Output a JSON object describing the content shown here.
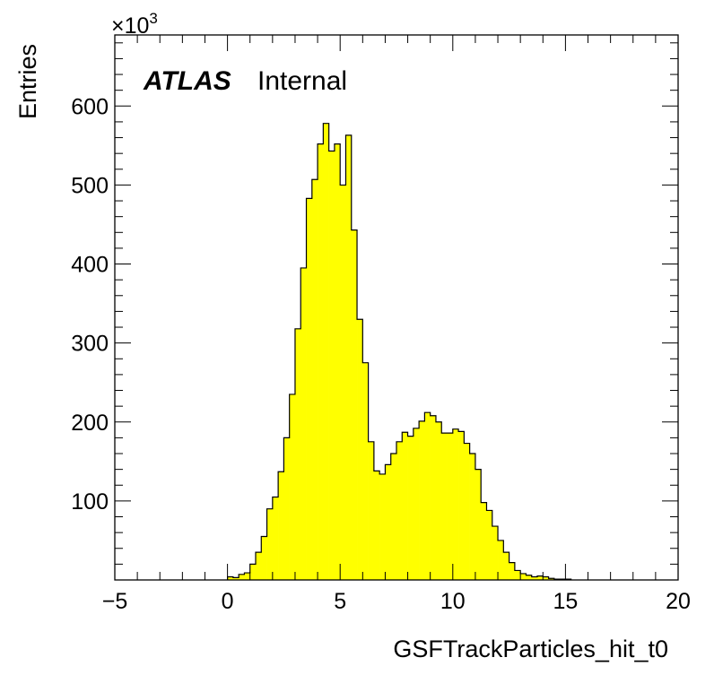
{
  "chart_data": {
    "type": "histogram",
    "xlabel": "GSFTrackParticles_hit_t0",
    "ylabel": "Entries",
    "y_multiplier": "×10",
    "y_multiplier_exp": "3",
    "atlas_label": "ATLAS",
    "atlas_status": "Internal",
    "xlim": [
      -5,
      20
    ],
    "ylim": [
      0,
      690
    ],
    "x_ticks": [
      -5,
      0,
      5,
      10,
      15,
      20
    ],
    "x_tick_labels": [
      "−5",
      "0",
      "5",
      "10",
      "15",
      "20"
    ],
    "y_ticks": [
      100,
      200,
      300,
      400,
      500,
      600
    ],
    "y_tick_labels": [
      "100",
      "200",
      "300",
      "400",
      "500",
      "600"
    ],
    "bin_width": 0.25,
    "bin_start": 0,
    "values": [
      4,
      3,
      7,
      9,
      20,
      35,
      55,
      90,
      105,
      137,
      180,
      235,
      318,
      395,
      483,
      507,
      552,
      578,
      543,
      552,
      500,
      563,
      443,
      330,
      275,
      175,
      138,
      134,
      146,
      160,
      175,
      187,
      182,
      192,
      201,
      212,
      208,
      200,
      186,
      186,
      191,
      188,
      173,
      160,
      140,
      98,
      88,
      68,
      50,
      35,
      22,
      12,
      8,
      6,
      4,
      5,
      4,
      2,
      1,
      1,
      1
    ],
    "fill_color": "#ffff00",
    "line_color": "#000000",
    "grid": false
  }
}
